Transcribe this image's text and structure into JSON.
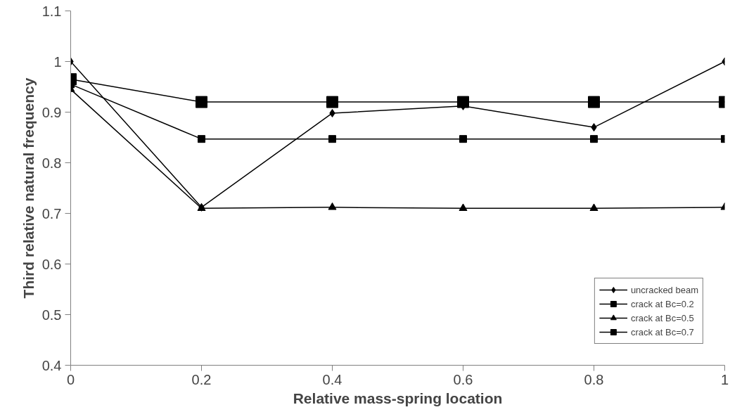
{
  "chart_data": {
    "type": "line",
    "xlabel": "Relative mass-spring location",
    "ylabel": "Third relative natural frequency",
    "x": [
      0,
      0.2,
      0.4,
      0.6,
      0.8,
      1
    ],
    "series": [
      {
        "name": "uncracked beam",
        "color": "#000000",
        "marker": "diamond",
        "values": [
          1.0,
          0.712,
          0.898,
          0.912,
          0.87,
          1.0
        ]
      },
      {
        "name": "crack at Bc=0.2",
        "color": "#000000",
        "marker": "square",
        "values": [
          0.955,
          0.847,
          0.847,
          0.847,
          0.847,
          0.847
        ]
      },
      {
        "name": "crack at Bc=0.5",
        "color": "#000000",
        "marker": "triangle",
        "values": [
          0.945,
          0.71,
          0.712,
          0.71,
          0.71,
          0.712
        ]
      },
      {
        "name": "crack at Bc=0.7",
        "color": "#000000",
        "marker": "square",
        "values": [
          0.965,
          0.92,
          0.92,
          0.92,
          0.92,
          0.92
        ]
      }
    ],
    "xlim": [
      0,
      1
    ],
    "ylim": [
      0.4,
      1.1
    ],
    "xticks": [
      0,
      0.2,
      0.4,
      0.6,
      0.8,
      1
    ],
    "yticks": [
      0.4,
      0.5,
      0.6,
      0.7,
      0.8,
      0.9,
      1,
      1.1
    ],
    "grid": false,
    "legend": "bottom right",
    "line_style": "solid"
  }
}
